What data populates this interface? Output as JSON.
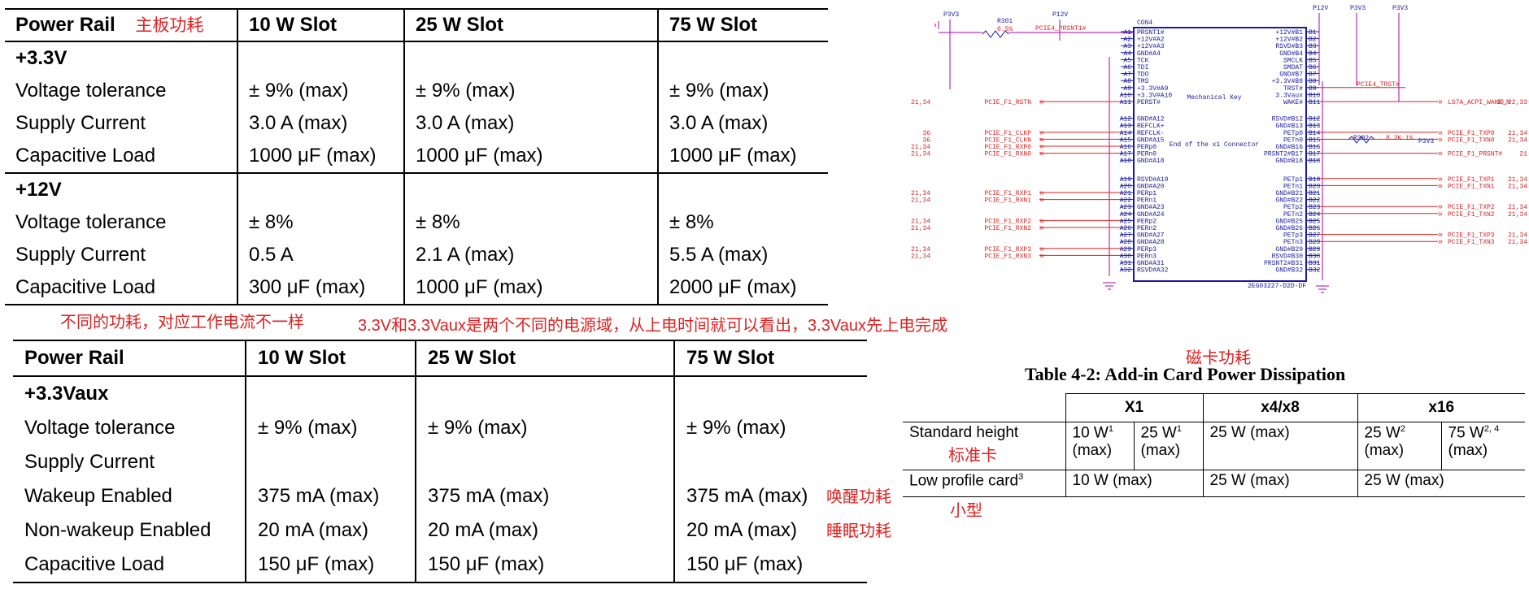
{
  "colors": {
    "annotation": "#e02020",
    "schematic_red": "#e02020",
    "schematic_blue": "#1a1aa0",
    "schematic_wire": "#b000b0"
  },
  "notes": {
    "board_power": "主板功耗",
    "diff_power": "不同的功耗，对应工作电流不一样",
    "vaux_domain": "3.3V和3.3Vaux是两个不同的电源域，从上电时间就可以看出，3.3Vaux先上电完成",
    "card_power": "磁卡功耗",
    "wake_power": "唤醒功耗",
    "sleep_power": "睡眠功耗",
    "standard_card": "标准卡",
    "small_card": "小型"
  },
  "table1": {
    "headers": [
      "Power Rail",
      "10 W Slot",
      "25 W Slot",
      "75 W Slot"
    ],
    "groups": [
      {
        "rail": "+3.3V",
        "rows": [
          [
            "Voltage tolerance",
            "± 9% (max)",
            "± 9% (max)",
            "± 9% (max)"
          ],
          [
            "Supply Current",
            "3.0 A (max)",
            "3.0 A (max)",
            "3.0 A (max)"
          ],
          [
            "Capacitive Load",
            "1000 μF (max)",
            "1000 μF (max)",
            "1000 μF (max)"
          ]
        ]
      },
      {
        "rail": "+12V",
        "rows": [
          [
            "Voltage tolerance",
            "± 8%",
            "± 8%",
            "± 8%"
          ],
          [
            "Supply Current",
            "0.5 A",
            "2.1 A (max)",
            "5.5 A (max)"
          ],
          [
            "Capacitive Load",
            "300 μF (max)",
            "1000 μF (max)",
            "2000 μF (max)"
          ]
        ]
      }
    ]
  },
  "table2": {
    "headers": [
      "Power Rail",
      "10 W Slot",
      "25 W Slot",
      "75 W Slot"
    ],
    "rail": "+3.3Vaux",
    "rows": [
      [
        "Voltage tolerance",
        "± 9% (max)",
        "± 9% (max)",
        "± 9% (max)"
      ],
      [
        "Supply Current",
        "",
        "",
        ""
      ],
      [
        "Wakeup Enabled",
        "375 mA (max)",
        "375 mA (max)",
        "375 mA (max)"
      ],
      [
        "Non-wakeup Enabled",
        "20 mA (max)",
        "20 mA (max)",
        "20 mA (max)"
      ],
      [
        "Capacitive Load",
        "150 μF (max)",
        "150 μF (max)",
        "150 μF (max)"
      ]
    ]
  },
  "table3": {
    "caption": "Table 4-2:  Add-in Card Power Dissipation",
    "group_headers": [
      "X1",
      "x4/x8",
      "x16"
    ],
    "standard": {
      "label": "Standard height",
      "x1a": "10 W",
      "x1a_sup": "1",
      "x1a_unit": "(max)",
      "x1b": "25 W",
      "x1b_sup": "1",
      "x1b_unit": "(max)",
      "x48": "25 W (max)",
      "x16a": "25 W",
      "x16a_sup": "2",
      "x16a_unit": "(max)",
      "x16b": "75 W",
      "x16b_sup": "2, 4",
      "x16b_unit": "(max)"
    },
    "low": {
      "label": "Low profile card",
      "label_sup": "3",
      "x1": "10 W (max)",
      "x48": "25 W (max)",
      "x16": "25 W (max)"
    }
  },
  "schematic": {
    "part": "CON4",
    "partnum": "2EG03227-D2D-DF",
    "p3v3_a": "P3V3",
    "p12v_a": "P12V",
    "p12v_b": "P12V",
    "p3v3_b": "P3V3",
    "p3v3_c": "P3V3",
    "p3v3_r": "P3V3",
    "r301": "R301",
    "r301_val": "0.5%",
    "r302": "R302",
    "r302_val": "8.2K 1%",
    "mech_key": "Mechanical Key",
    "end_x1": "End of the x1 Connector",
    "left_pins": [
      {
        "pin": "A1",
        "name": "PRSNT1#"
      },
      {
        "pin": "A2",
        "name": "+12V#A2"
      },
      {
        "pin": "A3",
        "name": "+12V#A3"
      },
      {
        "pin": "A4",
        "name": "GND#A4"
      },
      {
        "pin": "A5",
        "name": "TCK"
      },
      {
        "pin": "A6",
        "name": "TDI"
      },
      {
        "pin": "A7",
        "name": "TDO"
      },
      {
        "pin": "A8",
        "name": "TMS"
      },
      {
        "pin": "A9",
        "name": "+3.3V#A9"
      },
      {
        "pin": "A10",
        "name": "+3.3V#A10"
      },
      {
        "pin": "A11",
        "name": "PERST#"
      },
      {
        "pin": "A12",
        "name": "GND#A12"
      },
      {
        "pin": "A13",
        "name": "REFCLK+"
      },
      {
        "pin": "A14",
        "name": "REFCLK-"
      },
      {
        "pin": "A15",
        "name": "GND#A15"
      },
      {
        "pin": "A16",
        "name": "PERp0"
      },
      {
        "pin": "A17",
        "name": "PERn0"
      },
      {
        "pin": "A18",
        "name": "GND#A18"
      },
      {
        "pin": "A19",
        "name": "RSVD#A19"
      },
      {
        "pin": "A20",
        "name": "GND#A20"
      },
      {
        "pin": "A21",
        "name": "PERp1"
      },
      {
        "pin": "A22",
        "name": "PERn1"
      },
      {
        "pin": "A23",
        "name": "GND#A23"
      },
      {
        "pin": "A24",
        "name": "GND#A24"
      },
      {
        "pin": "A25",
        "name": "PERp2"
      },
      {
        "pin": "A26",
        "name": "PERn2"
      },
      {
        "pin": "A27",
        "name": "GND#A27"
      },
      {
        "pin": "A28",
        "name": "GND#A28"
      },
      {
        "pin": "A29",
        "name": "PERp3"
      },
      {
        "pin": "A30",
        "name": "PERn3"
      },
      {
        "pin": "A31",
        "name": "GND#A31"
      },
      {
        "pin": "A32",
        "name": "RSVD#A32"
      }
    ],
    "right_pins": [
      {
        "pin": "B1",
        "name": "+12V#B1"
      },
      {
        "pin": "B2",
        "name": "+12V#B2"
      },
      {
        "pin": "B3",
        "name": "RSVD#B3"
      },
      {
        "pin": "B4",
        "name": "GND#B4"
      },
      {
        "pin": "B5",
        "name": "SMCLK"
      },
      {
        "pin": "B6",
        "name": "SMDAT"
      },
      {
        "pin": "B7",
        "name": "GND#B7"
      },
      {
        "pin": "B8",
        "name": "+3.3V#B8"
      },
      {
        "pin": "B9",
        "name": "TRST#"
      },
      {
        "pin": "B10",
        "name": "3.3Vaux"
      },
      {
        "pin": "B11",
        "name": "WAKE#"
      },
      {
        "pin": "B12",
        "name": "RSVD#B12"
      },
      {
        "pin": "B13",
        "name": "GND#B13"
      },
      {
        "pin": "B14",
        "name": "PETp0"
      },
      {
        "pin": "B15",
        "name": "PETn0"
      },
      {
        "pin": "B16",
        "name": "GND#B16"
      },
      {
        "pin": "B17",
        "name": "PRSNT2#B17"
      },
      {
        "pin": "B18",
        "name": "GND#B18"
      },
      {
        "pin": "B19",
        "name": "PETp1"
      },
      {
        "pin": "B20",
        "name": "PETn1"
      },
      {
        "pin": "B21",
        "name": "GND#B21"
      },
      {
        "pin": "B22",
        "name": "GND#B22"
      },
      {
        "pin": "B23",
        "name": "PETp2"
      },
      {
        "pin": "B24",
        "name": "PETn2"
      },
      {
        "pin": "B25",
        "name": "GND#B25"
      },
      {
        "pin": "B26",
        "name": "GND#B26"
      },
      {
        "pin": "B27",
        "name": "PETp3"
      },
      {
        "pin": "B28",
        "name": "PETn3"
      },
      {
        "pin": "B29",
        "name": "GND#B29"
      },
      {
        "pin": "B30",
        "name": "RSVD#B30"
      },
      {
        "pin": "B31",
        "name": "PRSNT2#B31"
      },
      {
        "pin": "B32",
        "name": "GND#B32"
      }
    ],
    "left_nets": [
      {
        "net": "PCIE4_PRSNT1#",
        "ref": ""
      },
      {
        "net": "PCIE_F1_RSTN",
        "ref": "21,34"
      },
      {
        "net": "PCIE_F1_CLKP",
        "ref": "36"
      },
      {
        "net": "PCIE_F1_CLKN",
        "ref": "36"
      },
      {
        "net": "PCIE_F1_RXP0",
        "ref": "21,34"
      },
      {
        "net": "PCIE_F1_RXN0",
        "ref": "21,34"
      },
      {
        "net": "PCIE_F1_RXP1",
        "ref": "21,34"
      },
      {
        "net": "PCIE_F1_RXN1",
        "ref": "21,34"
      },
      {
        "net": "PCIE_F1_RXP2",
        "ref": "21,34"
      },
      {
        "net": "PCIE_F1_RXN2",
        "ref": "21,34"
      },
      {
        "net": "PCIE_F1_RXP3",
        "ref": "21,34"
      },
      {
        "net": "PCIE_F1_RXN3",
        "ref": "21,34"
      }
    ],
    "right_nets": [
      {
        "net": "PCIE4_TRST#",
        "ref": ""
      },
      {
        "net": "LS7A_ACPI_WAKE_N",
        "ref": "18,22,33"
      },
      {
        "net": "PCIE_F1_TXP0",
        "ref": "21,34"
      },
      {
        "net": "PCIE_F1_TXN0",
        "ref": "21,34"
      },
      {
        "net": "PCIE_F1_PRSNT#",
        "ref": "21"
      },
      {
        "net": "PCIE_F1_TXP1",
        "ref": "21,34"
      },
      {
        "net": "PCIE_F1_TXN1",
        "ref": "21,34"
      },
      {
        "net": "PCIE_F1_TXP2",
        "ref": "21,34"
      },
      {
        "net": "PCIE_F1_TXN2",
        "ref": "21,34"
      },
      {
        "net": "PCIE_F1_TXP3",
        "ref": "21,34"
      },
      {
        "net": "PCIE_F1_TXN3",
        "ref": "21,34"
      }
    ]
  }
}
